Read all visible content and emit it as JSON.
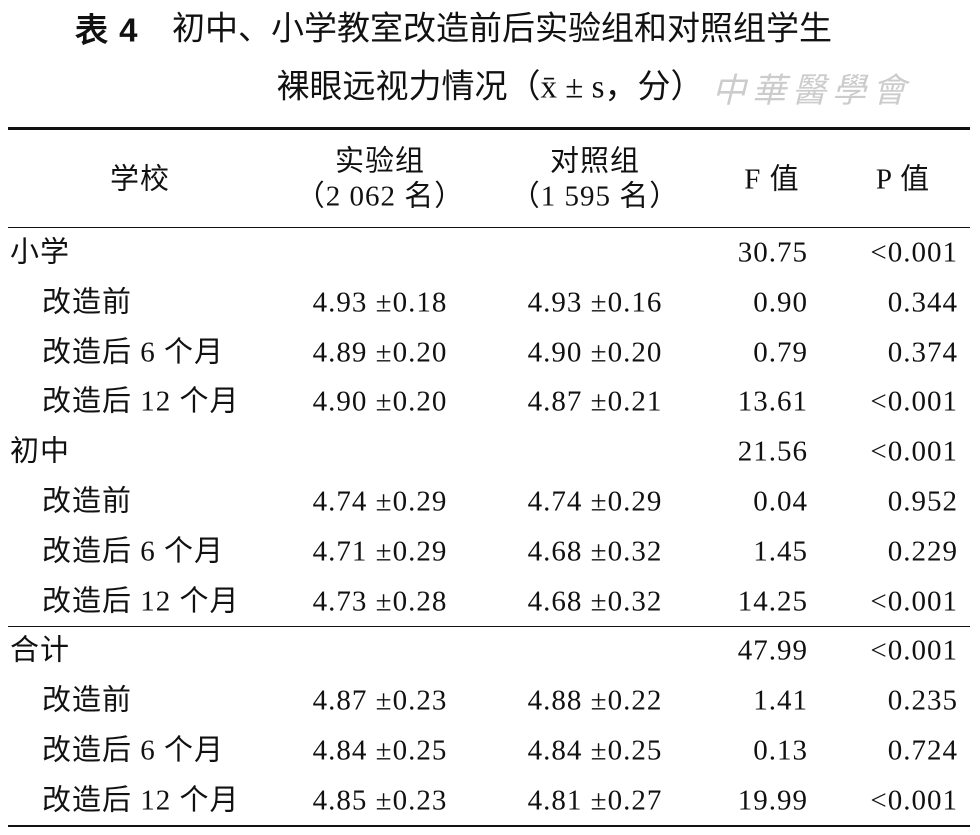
{
  "header": {
    "label": "表 4",
    "title_lines": [
      "初中、小学教室改造前后实验组和对照组学生",
      "裸眼远视力情况（x̄ ± s，分）"
    ],
    "watermark": "中華醫學會"
  },
  "table": {
    "columns": [
      {
        "lines": [
          "学校"
        ]
      },
      {
        "lines": [
          "实验组",
          "（2 062 名）"
        ]
      },
      {
        "lines": [
          "对照组",
          "（1 595 名）"
        ]
      },
      {
        "lines": [
          "F 值"
        ]
      },
      {
        "lines": [
          "P 值"
        ]
      }
    ],
    "sections": [
      {
        "name": "小学",
        "F": "30.75",
        "P": "<0.001",
        "rows": [
          [
            "改造前",
            "4.93 ±0.18",
            "4.93 ±0.16",
            "0.90",
            "0.344"
          ],
          [
            "改造后 6 个月",
            "4.89 ±0.20",
            "4.90 ±0.20",
            "0.79",
            "0.374"
          ],
          [
            "改造后 12 个月",
            "4.90 ±0.20",
            "4.87 ±0.21",
            "13.61",
            "<0.001"
          ]
        ]
      },
      {
        "name": "初中",
        "F": "21.56",
        "P": "<0.001",
        "rows": [
          [
            "改造前",
            "4.74 ±0.29",
            "4.74 ±0.29",
            "0.04",
            "0.952"
          ],
          [
            "改造后 6 个月",
            "4.71 ±0.29",
            "4.68 ±0.32",
            "1.45",
            "0.229"
          ],
          [
            "改造后 12 个月",
            "4.73 ±0.28",
            "4.68 ±0.32",
            "14.25",
            "<0.001"
          ]
        ]
      },
      {
        "name": "合计",
        "F": "47.99",
        "P": "<0.001",
        "rows": [
          [
            "改造前",
            "4.87 ±0.23",
            "4.88 ±0.22",
            "1.41",
            "0.235"
          ],
          [
            "改造后 6 个月",
            "4.84 ±0.25",
            "4.84 ±0.25",
            "0.13",
            "0.724"
          ],
          [
            "改造后 12 个月",
            "4.85 ±0.23",
            "4.81 ±0.27",
            "19.99",
            "<0.001"
          ]
        ]
      }
    ]
  }
}
